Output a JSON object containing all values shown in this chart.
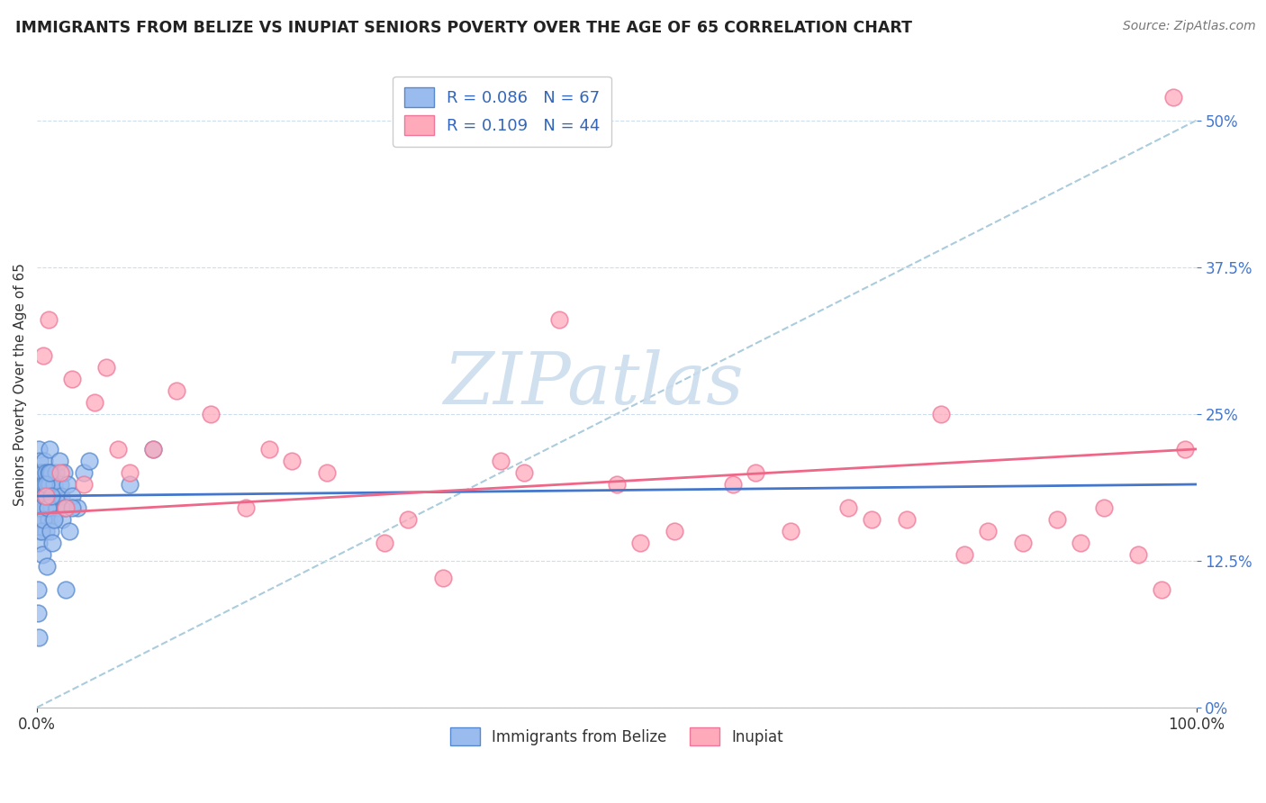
{
  "title": "IMMIGRANTS FROM BELIZE VS INUPIAT SENIORS POVERTY OVER THE AGE OF 65 CORRELATION CHART",
  "source": "Source: ZipAtlas.com",
  "ylabel": "Seniors Poverty Over the Age of 65",
  "xlim": [
    0,
    100
  ],
  "ylim": [
    0,
    55
  ],
  "yticks": [
    0,
    12.5,
    25,
    37.5,
    50
  ],
  "ytick_labels": [
    "0%",
    "12.5%",
    "25%",
    "37.5%",
    "50%"
  ],
  "xticks": [
    0,
    100
  ],
  "xtick_labels": [
    "0.0%",
    "100.0%"
  ],
  "legend_r1": "R = 0.086",
  "legend_n1": "N = 67",
  "legend_r2": "R = 0.109",
  "legend_n2": "N = 44",
  "color_blue_fill": "#99BBEE",
  "color_blue_edge": "#5588CC",
  "color_pink_fill": "#FFAABB",
  "color_pink_edge": "#EE7799",
  "color_blue_line": "#4477CC",
  "color_pink_line": "#EE6688",
  "color_dashed": "#AACCDD",
  "blue_x": [
    0.05,
    0.1,
    0.1,
    0.15,
    0.2,
    0.2,
    0.2,
    0.3,
    0.3,
    0.3,
    0.4,
    0.4,
    0.5,
    0.5,
    0.6,
    0.6,
    0.7,
    0.7,
    0.8,
    0.8,
    0.9,
    0.9,
    1.0,
    1.0,
    1.1,
    1.1,
    1.2,
    1.2,
    1.3,
    1.4,
    1.5,
    1.6,
    1.7,
    1.8,
    1.9,
    2.0,
    2.1,
    2.2,
    2.3,
    2.4,
    2.6,
    2.8,
    3.0,
    3.5,
    4.0,
    0.05,
    0.08,
    0.12,
    0.18,
    0.25,
    0.35,
    0.45,
    0.55,
    0.65,
    0.75,
    0.85,
    0.95,
    1.05,
    1.15,
    1.25,
    1.35,
    1.5,
    2.5,
    3.0,
    4.5,
    8.0,
    10.0
  ],
  "blue_y": [
    18,
    20,
    16,
    22,
    19,
    15,
    21,
    18,
    20,
    16,
    17,
    19,
    20,
    16,
    19,
    21,
    18,
    17,
    20,
    15,
    19,
    17,
    20,
    16,
    19,
    22,
    17,
    20,
    18,
    16,
    19,
    20,
    17,
    18,
    21,
    19,
    18,
    16,
    20,
    17,
    19,
    15,
    18,
    17,
    20,
    10,
    8,
    6,
    14,
    17,
    15,
    13,
    16,
    18,
    19,
    12,
    17,
    20,
    15,
    18,
    14,
    16,
    10,
    17,
    21,
    19,
    22
  ],
  "pink_x": [
    0.5,
    1.0,
    2.0,
    3.0,
    4.0,
    5.0,
    6.0,
    8.0,
    10.0,
    12.0,
    15.0,
    18.0,
    20.0,
    25.0,
    30.0,
    35.0,
    40.0,
    42.0,
    45.0,
    50.0,
    55.0,
    60.0,
    62.0,
    65.0,
    70.0,
    72.0,
    75.0,
    80.0,
    82.0,
    85.0,
    88.0,
    90.0,
    92.0,
    95.0,
    97.0,
    98.0,
    0.8,
    2.5,
    7.0,
    22.0,
    32.0,
    52.0,
    78.0,
    99.0
  ],
  "pink_y": [
    30,
    33,
    20,
    28,
    19,
    26,
    29,
    20,
    22,
    27,
    25,
    17,
    22,
    20,
    14,
    11,
    21,
    20,
    33,
    19,
    15,
    19,
    20,
    15,
    17,
    16,
    16,
    13,
    15,
    14,
    16,
    14,
    17,
    13,
    10,
    52,
    18,
    17,
    22,
    21,
    16,
    14,
    25,
    22
  ],
  "blue_line": [
    0,
    100,
    18.0,
    19.0
  ],
  "pink_line": [
    0,
    100,
    16.5,
    22.0
  ],
  "dashed_line": [
    0,
    100,
    0,
    50
  ],
  "bg_color": "#FFFFFF",
  "watermark_text": "ZIPatlas",
  "watermark_color": "#CCDDEE",
  "bottom_legend": [
    "Immigrants from Belize",
    "Inupiat"
  ]
}
